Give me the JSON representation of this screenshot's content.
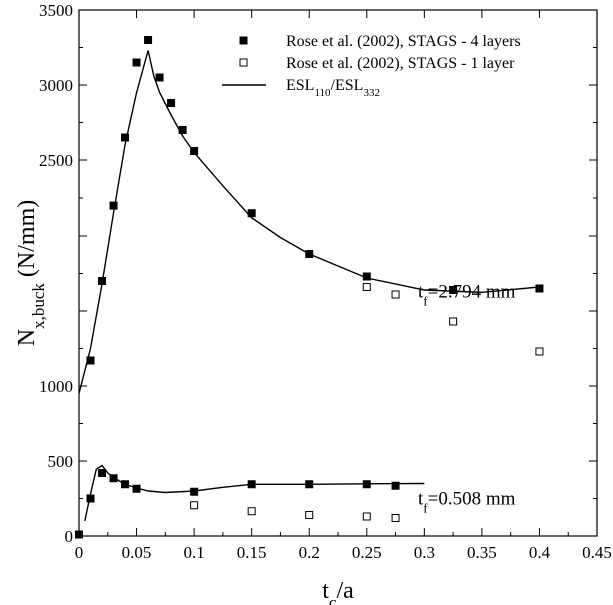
{
  "chart_data": {
    "type": "scatter",
    "title": "",
    "xlabel": {
      "main": "t",
      "sub": "c",
      "tail": "/a"
    },
    "ylabel": {
      "main": "N",
      "sub": "x,buck",
      "tail": " (N/mm)"
    },
    "xlim": [
      0,
      0.45
    ],
    "x_ticks": [
      0,
      0.05,
      0.1,
      0.15,
      0.2,
      0.25,
      0.3,
      0.35,
      0.4,
      0.45
    ],
    "x_tick_labels": [
      "0",
      "0.05",
      "0.1",
      "0.15",
      "0.2",
      "0.25",
      "0.3",
      "0.35",
      "0.4",
      "0.45"
    ],
    "y_labeled_ticks": [
      0,
      500,
      1000,
      2500,
      3000,
      3500
    ],
    "y_tick_labels": [
      "0",
      "500",
      "1000",
      "2500",
      "3000",
      "3500"
    ],
    "y_unlabeled_ticks": [
      1500,
      2000
    ],
    "legend": {
      "position": "top-right",
      "entries": [
        {
          "marker": "filled-square",
          "label": "Rose et al. (2002), STAGS - 4 layers"
        },
        {
          "marker": "open-square",
          "label": "Rose et al. (2002), STAGS - 1 layer"
        },
        {
          "marker": "line",
          "label_parts": [
            "ESL",
            "110",
            "/ESL",
            "332"
          ]
        }
      ]
    },
    "annotations": [
      {
        "text_parts": [
          "t",
          "f",
          "=2.794 mm"
        ],
        "x": 0.24,
        "y": 1590
      },
      {
        "text_parts": [
          "t",
          "f",
          "=0.508 mm"
        ],
        "x": 0.24,
        "y": 210
      }
    ],
    "series": [
      {
        "name": "Rose et al. (2002), STAGS - 4 layers (t_f=2.794 mm)",
        "marker": "filled-square",
        "points": [
          [
            0.01,
            1170
          ],
          [
            0.02,
            1700
          ],
          [
            0.03,
            2200
          ],
          [
            0.04,
            2650
          ],
          [
            0.05,
            3150
          ],
          [
            0.06,
            3300
          ],
          [
            0.07,
            3050
          ],
          [
            0.08,
            2880
          ],
          [
            0.09,
            2700
          ],
          [
            0.1,
            2560
          ],
          [
            0.15,
            2150
          ],
          [
            0.2,
            1880
          ],
          [
            0.25,
            1730
          ],
          [
            0.325,
            1640
          ],
          [
            0.4,
            1650
          ]
        ]
      },
      {
        "name": "Rose et al. (2002), STAGS - 1 layer (t_f=2.794 mm)",
        "marker": "open-square",
        "points": [
          [
            0.25,
            1660
          ],
          [
            0.275,
            1610
          ],
          [
            0.325,
            1430
          ],
          [
            0.4,
            1230
          ]
        ]
      },
      {
        "name": "ESL110/ESL332 (t_f=2.794 mm)",
        "marker": "line",
        "points": [
          [
            0,
            950
          ],
          [
            0.01,
            1250
          ],
          [
            0.02,
            1680
          ],
          [
            0.03,
            2150
          ],
          [
            0.04,
            2600
          ],
          [
            0.05,
            2950
          ],
          [
            0.06,
            3230
          ],
          [
            0.065,
            3060
          ],
          [
            0.07,
            2950
          ],
          [
            0.08,
            2800
          ],
          [
            0.09,
            2660
          ],
          [
            0.1,
            2550
          ],
          [
            0.125,
            2330
          ],
          [
            0.15,
            2120
          ],
          [
            0.175,
            1990
          ],
          [
            0.2,
            1880
          ],
          [
            0.25,
            1720
          ],
          [
            0.3,
            1640
          ],
          [
            0.35,
            1625
          ],
          [
            0.4,
            1660
          ]
        ]
      },
      {
        "name": "Rose et al. (2002), STAGS - 4 layers (t_f=0.508 mm)",
        "marker": "filled-square",
        "points": [
          [
            0,
            10
          ],
          [
            0.01,
            250
          ],
          [
            0.02,
            420
          ],
          [
            0.03,
            385
          ],
          [
            0.04,
            345
          ],
          [
            0.05,
            315
          ],
          [
            0.1,
            295
          ],
          [
            0.15,
            345
          ],
          [
            0.2,
            345
          ],
          [
            0.25,
            345
          ],
          [
            0.275,
            335
          ]
        ]
      },
      {
        "name": "Rose et al. (2002), STAGS - 1 layer (t_f=0.508 mm)",
        "marker": "open-square",
        "points": [
          [
            0.1,
            205
          ],
          [
            0.15,
            165
          ],
          [
            0.2,
            140
          ],
          [
            0.25,
            130
          ],
          [
            0.275,
            120
          ]
        ]
      },
      {
        "name": "ESL110/ESL332 (t_f=0.508 mm)",
        "marker": "line",
        "points": [
          [
            0.005,
            100
          ],
          [
            0.01,
            280
          ],
          [
            0.015,
            445
          ],
          [
            0.02,
            470
          ],
          [
            0.025,
            420
          ],
          [
            0.03,
            390
          ],
          [
            0.04,
            345
          ],
          [
            0.05,
            320
          ],
          [
            0.06,
            300
          ],
          [
            0.075,
            290
          ],
          [
            0.1,
            300
          ],
          [
            0.125,
            325
          ],
          [
            0.15,
            345
          ],
          [
            0.2,
            345
          ],
          [
            0.25,
            348
          ],
          [
            0.3,
            350
          ]
        ]
      }
    ]
  }
}
